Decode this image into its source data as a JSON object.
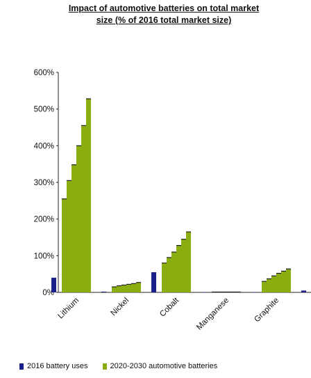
{
  "chart_data": {
    "type": "bar",
    "title": "Impact of automotive batteries on total market",
    "subtitle": "size (% of 2016 total market size)",
    "categories": [
      "Lithium",
      "Nickel",
      "Cobalt",
      "Manganese",
      "Graphite",
      ""
    ],
    "series": [
      {
        "name": "2016 battery uses",
        "color": "#1b1f8a",
        "values": [
          40,
          2,
          55,
          1,
          1,
          5
        ]
      },
      {
        "name": "2020-2030 automotive batteries",
        "color": "#8aad10",
        "values": [
          [
            255,
            305,
            348,
            400,
            455,
            528
          ],
          [
            15,
            18,
            20,
            22,
            24,
            27
          ],
          [
            80,
            95,
            110,
            128,
            145,
            165
          ],
          [
            1,
            1,
            1,
            1,
            1,
            1
          ],
          [
            30,
            37,
            45,
            52,
            58,
            64
          ],
          [
            0,
            0,
            0,
            0,
            0,
            0
          ]
        ]
      }
    ],
    "yticks": [
      "0%",
      "100%",
      "200%",
      "300%",
      "400%",
      "500%",
      "600%"
    ],
    "ylim": [
      0,
      600
    ],
    "grid": false,
    "legend_position": "bottom"
  }
}
